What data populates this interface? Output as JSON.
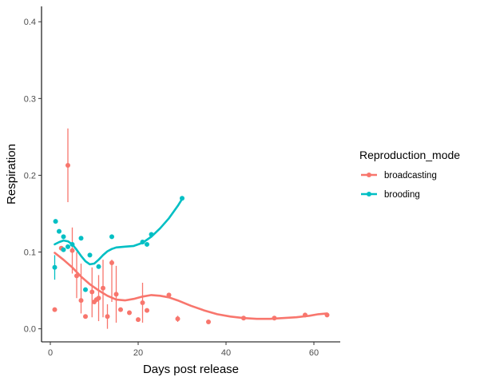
{
  "chart_data": {
    "type": "scatter",
    "xlabel": "Days post release",
    "ylabel": "Respiration",
    "xlim": [
      -2,
      66
    ],
    "ylim": [
      -0.017,
      0.42
    ],
    "x_ticks": [
      0,
      20,
      40,
      60
    ],
    "y_ticks": [
      0.0,
      0.1,
      0.2,
      0.3,
      0.4
    ],
    "x_tick_labels": [
      "0",
      "20",
      "40",
      "60"
    ],
    "y_tick_labels": [
      "0.0",
      "0.1",
      "0.2",
      "0.3",
      "0.4"
    ],
    "grid": false,
    "legend": {
      "title": "Reproduction_mode",
      "position": "right"
    },
    "series": [
      {
        "name": "broadcasting",
        "color": "#F8766D",
        "points": [
          {
            "x": 1,
            "y": 0.025
          },
          {
            "x": 2.5,
            "y": 0.105
          },
          {
            "x": 4,
            "y": 0.213,
            "ymin": 0.165,
            "ymax": 0.261
          },
          {
            "x": 5,
            "y": 0.102,
            "ymin": 0.072,
            "ymax": 0.132
          },
          {
            "x": 6,
            "y": 0.069,
            "ymin": 0.04,
            "ymax": 0.1
          },
          {
            "x": 7,
            "y": 0.037,
            "ymin": 0.02,
            "ymax": 0.085
          },
          {
            "x": 8,
            "y": 0.016
          },
          {
            "x": 9.5,
            "y": 0.048,
            "ymin": 0.015,
            "ymax": 0.08
          },
          {
            "x": 10,
            "y": 0.035
          },
          {
            "x": 10.5,
            "y": 0.038
          },
          {
            "x": 11,
            "y": 0.04,
            "ymin": 0.01,
            "ymax": 0.07
          },
          {
            "x": 12,
            "y": 0.053,
            "ymin": 0.015,
            "ymax": 0.09
          },
          {
            "x": 13,
            "y": 0.016,
            "ymin": 0.0,
            "ymax": 0.032
          },
          {
            "x": 14,
            "y": 0.086,
            "ymin": 0.035,
            "ymax": 0.09
          },
          {
            "x": 15,
            "y": 0.045,
            "ymin": 0.008,
            "ymax": 0.082
          },
          {
            "x": 16,
            "y": 0.025
          },
          {
            "x": 18,
            "y": 0.021
          },
          {
            "x": 20,
            "y": 0.012
          },
          {
            "x": 21,
            "y": 0.034,
            "ymin": 0.008,
            "ymax": 0.06
          },
          {
            "x": 22,
            "y": 0.024
          },
          {
            "x": 27,
            "y": 0.044
          },
          {
            "x": 29,
            "y": 0.013,
            "ymin": 0.009,
            "ymax": 0.017
          },
          {
            "x": 36,
            "y": 0.009
          },
          {
            "x": 44,
            "y": 0.014
          },
          {
            "x": 51,
            "y": 0.014
          },
          {
            "x": 58,
            "y": 0.018
          },
          {
            "x": 63,
            "y": 0.018
          }
        ],
        "smooth": [
          [
            1,
            0.099
          ],
          [
            3,
            0.09
          ],
          [
            5,
            0.08
          ],
          [
            7,
            0.068
          ],
          [
            9,
            0.058
          ],
          [
            11,
            0.05
          ],
          [
            13,
            0.043
          ],
          [
            15,
            0.038
          ],
          [
            17,
            0.037
          ],
          [
            19,
            0.039
          ],
          [
            21,
            0.042
          ],
          [
            23,
            0.044
          ],
          [
            25,
            0.043
          ],
          [
            27,
            0.041
          ],
          [
            29,
            0.037
          ],
          [
            32,
            0.03
          ],
          [
            35,
            0.024
          ],
          [
            38,
            0.019
          ],
          [
            41,
            0.016
          ],
          [
            44,
            0.014
          ],
          [
            47,
            0.013
          ],
          [
            50,
            0.013
          ],
          [
            53,
            0.014
          ],
          [
            56,
            0.015
          ],
          [
            59,
            0.017
          ],
          [
            61,
            0.019
          ],
          [
            63,
            0.02
          ]
        ]
      },
      {
        "name": "brooding",
        "color": "#00BFC4",
        "points": [
          {
            "x": 1,
            "y": 0.08,
            "ymin": 0.064,
            "ymax": 0.096
          },
          {
            "x": 1.2,
            "y": 0.14
          },
          {
            "x": 2,
            "y": 0.127
          },
          {
            "x": 3,
            "y": 0.12
          },
          {
            "x": 3,
            "y": 0.103
          },
          {
            "x": 4,
            "y": 0.107
          },
          {
            "x": 5,
            "y": 0.11
          },
          {
            "x": 7,
            "y": 0.118
          },
          {
            "x": 8,
            "y": 0.051
          },
          {
            "x": 9,
            "y": 0.096
          },
          {
            "x": 11,
            "y": 0.081
          },
          {
            "x": 14,
            "y": 0.12
          },
          {
            "x": 21,
            "y": 0.113
          },
          {
            "x": 22,
            "y": 0.11
          },
          {
            "x": 23,
            "y": 0.123
          },
          {
            "x": 30,
            "y": 0.17
          }
        ],
        "smooth": [
          [
            1,
            0.11
          ],
          [
            2,
            0.113
          ],
          [
            3,
            0.115
          ],
          [
            4,
            0.114
          ],
          [
            5,
            0.11
          ],
          [
            6,
            0.103
          ],
          [
            7,
            0.095
          ],
          [
            8,
            0.088
          ],
          [
            9,
            0.084
          ],
          [
            10,
            0.085
          ],
          [
            11,
            0.09
          ],
          [
            12,
            0.096
          ],
          [
            13,
            0.101
          ],
          [
            14,
            0.104
          ],
          [
            15,
            0.106
          ],
          [
            17,
            0.107
          ],
          [
            19,
            0.108
          ],
          [
            21,
            0.112
          ],
          [
            23,
            0.12
          ],
          [
            25,
            0.131
          ],
          [
            27,
            0.144
          ],
          [
            29,
            0.16
          ],
          [
            30,
            0.169
          ]
        ]
      }
    ]
  }
}
